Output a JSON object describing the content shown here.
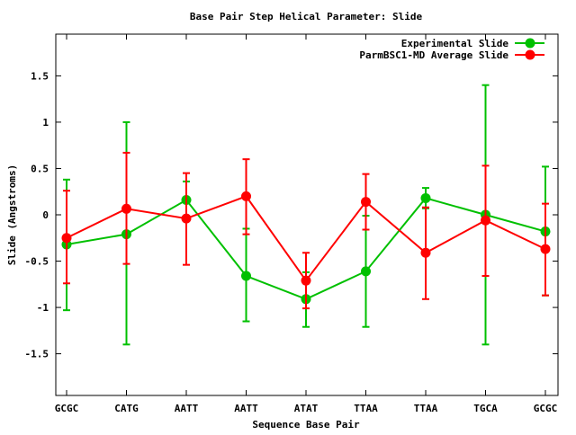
{
  "chart_data": {
    "type": "line",
    "title": "Base Pair Step Helical Parameter: Slide",
    "xlabel": "Sequence Base Pair",
    "ylabel": "Slide (Angstroms)",
    "categories": [
      "GCGC",
      "CATG",
      "AATT",
      "AATT",
      "ATAT",
      "TTAA",
      "TTAA",
      "TGCA",
      "GCGC"
    ],
    "ylim": [
      -1.95,
      1.95
    ],
    "yticks": [
      -1.5,
      -1,
      -0.5,
      0,
      0.5,
      1,
      1.5
    ],
    "ytick_labels": [
      "-1.5",
      "-1",
      "-0.5",
      "0",
      "0.5",
      "1",
      "1.5"
    ],
    "grid": false,
    "legend_position": "top-right",
    "error_bars": true,
    "series": [
      {
        "name": "Experimental Slide",
        "color": "#00c000",
        "values": [
          -0.32,
          -0.21,
          0.16,
          -0.66,
          -0.91,
          -0.61,
          0.18,
          0.0,
          -0.18
        ],
        "err_high": [
          0.38,
          1.0,
          0.36,
          -0.15,
          -0.62,
          -0.01,
          0.29,
          1.4,
          0.52
        ],
        "err_low": [
          -1.03,
          -1.4,
          -0.04,
          -1.15,
          -1.21,
          -1.21,
          0.07,
          -1.4,
          -0.87
        ]
      },
      {
        "name": "ParmBSC1-MD Average Slide",
        "color": "#ff0000",
        "values": [
          -0.25,
          0.065,
          -0.04,
          0.2,
          -0.71,
          0.14,
          -0.41,
          -0.06,
          -0.37
        ],
        "err_high": [
          0.26,
          0.67,
          0.45,
          0.6,
          -0.41,
          0.44,
          0.08,
          0.53,
          0.12
        ],
        "err_low": [
          -0.74,
          -0.53,
          -0.54,
          -0.21,
          -1.01,
          -0.16,
          -0.91,
          -0.66,
          -0.87
        ]
      }
    ]
  }
}
